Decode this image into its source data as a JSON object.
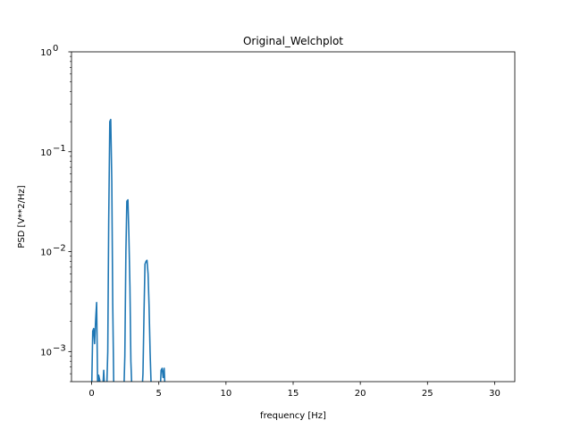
{
  "chart_data": {
    "type": "line",
    "title": "Original_Welchplot",
    "xlabel": "frequency [Hz]",
    "ylabel": "PSD [V**2/Hz]",
    "xlim": [
      -1.5,
      31.5
    ],
    "ylim": [
      0.0005,
      1
    ],
    "yscale": "log",
    "grid": false,
    "line_color": "#1f77b4",
    "x_ticks": [
      0,
      5,
      10,
      15,
      20,
      25,
      30
    ],
    "x_tick_labels": [
      "0",
      "5",
      "10",
      "15",
      "20",
      "25",
      "30"
    ],
    "y_ticks": [
      0.001,
      0.01,
      0.1,
      1
    ],
    "y_tick_labels": [
      {
        "base": "10",
        "exp": "−3"
      },
      {
        "base": "10",
        "exp": "−2"
      },
      {
        "base": "10",
        "exp": "−1"
      },
      {
        "base": "10",
        "exp": "0"
      }
    ],
    "series": [
      {
        "x": [
          0.0,
          0.08,
          0.15,
          0.22,
          0.3,
          0.37,
          0.45,
          0.52,
          0.6,
          0.67,
          0.75,
          0.82,
          0.9,
          0.97,
          1.05,
          1.12,
          1.2,
          1.27,
          1.35,
          1.42,
          1.5,
          1.57,
          1.65,
          1.72,
          1.8,
          1.87,
          1.95,
          2.02,
          2.1,
          2.17,
          2.25,
          2.32,
          2.4,
          2.47,
          2.55,
          2.62,
          2.7,
          2.77,
          2.85,
          2.92,
          3.0,
          3.07,
          3.15,
          3.22,
          3.3,
          3.37,
          3.45,
          3.52,
          3.6,
          3.67,
          3.75,
          3.82,
          3.9,
          3.97,
          4.05,
          4.12,
          4.2,
          4.27,
          4.35,
          4.42,
          4.5,
          4.57,
          4.65,
          4.72,
          4.8,
          4.87,
          4.95,
          5.02,
          5.1,
          5.17,
          5.25,
          5.32,
          5.4,
          5.47
        ],
        "y": [
          0.0004,
          0.0016,
          0.0017,
          0.0012,
          0.0021,
          0.0031,
          0.0004,
          0.00058,
          0.00052,
          0.0004,
          0.0004,
          0.0004,
          0.00065,
          0.0004,
          0.0004,
          0.0004,
          0.001,
          0.02,
          0.2,
          0.21,
          0.05,
          0.003,
          0.0004,
          0.0004,
          0.0004,
          0.0004,
          0.0004,
          0.0004,
          0.0004,
          0.0004,
          0.0004,
          0.0004,
          0.0004,
          0.0009,
          0.01,
          0.032,
          0.033,
          0.015,
          0.0045,
          0.0008,
          0.0004,
          0.0004,
          0.0004,
          0.0004,
          0.0004,
          0.0004,
          0.0004,
          0.0004,
          0.0004,
          0.0004,
          0.0004,
          0.0006,
          0.0025,
          0.0075,
          0.008,
          0.0082,
          0.006,
          0.003,
          0.001,
          0.0005,
          0.0004,
          0.0004,
          0.0004,
          0.0004,
          0.0004,
          0.0004,
          0.0004,
          0.0004,
          0.0004,
          0.00065,
          0.00068,
          0.00055,
          0.00068,
          0.0004
        ]
      }
    ]
  }
}
